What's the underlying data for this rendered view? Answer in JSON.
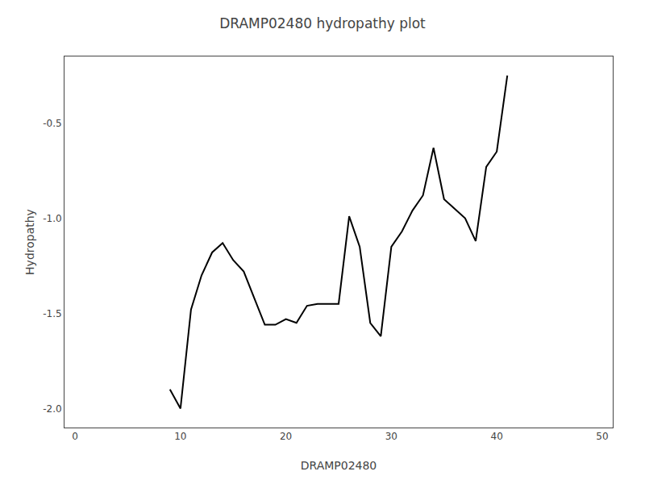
{
  "chart_data": {
    "type": "line",
    "title": "DRAMP02480 hydropathy plot",
    "xlabel": "DRAMP02480",
    "ylabel": "Hydropathy",
    "x": [
      9,
      10,
      11,
      12,
      13,
      14,
      15,
      16,
      17,
      18,
      19,
      20,
      21,
      22,
      23,
      24,
      25,
      26,
      27,
      28,
      29,
      30,
      31,
      32,
      33,
      34,
      35,
      36,
      37,
      38,
      39,
      40,
      41
    ],
    "values": [
      -1.9,
      -2.0,
      -1.48,
      -1.3,
      -1.18,
      -1.13,
      -1.22,
      -1.28,
      -1.42,
      -1.56,
      -1.56,
      -1.53,
      -1.55,
      -1.46,
      -1.45,
      -1.45,
      -1.45,
      -0.99,
      -1.15,
      -1.55,
      -1.62,
      -1.15,
      -1.07,
      -0.96,
      -0.88,
      -0.63,
      -0.9,
      -0.95,
      -1.0,
      -1.12,
      -0.73,
      -0.65,
      -0.25
    ],
    "color": "#000000",
    "xlim": [
      -1,
      51
    ],
    "ylim": [
      -2.1,
      -0.15
    ],
    "xticks": [
      0,
      10,
      20,
      30,
      40,
      50
    ],
    "yticks": [
      {
        "value": -2.0,
        "label": "-2.0"
      },
      -1.5,
      {
        "value": -1.0,
        "label": "-1.0"
      },
      -0.5
    ],
    "grid": false
  }
}
